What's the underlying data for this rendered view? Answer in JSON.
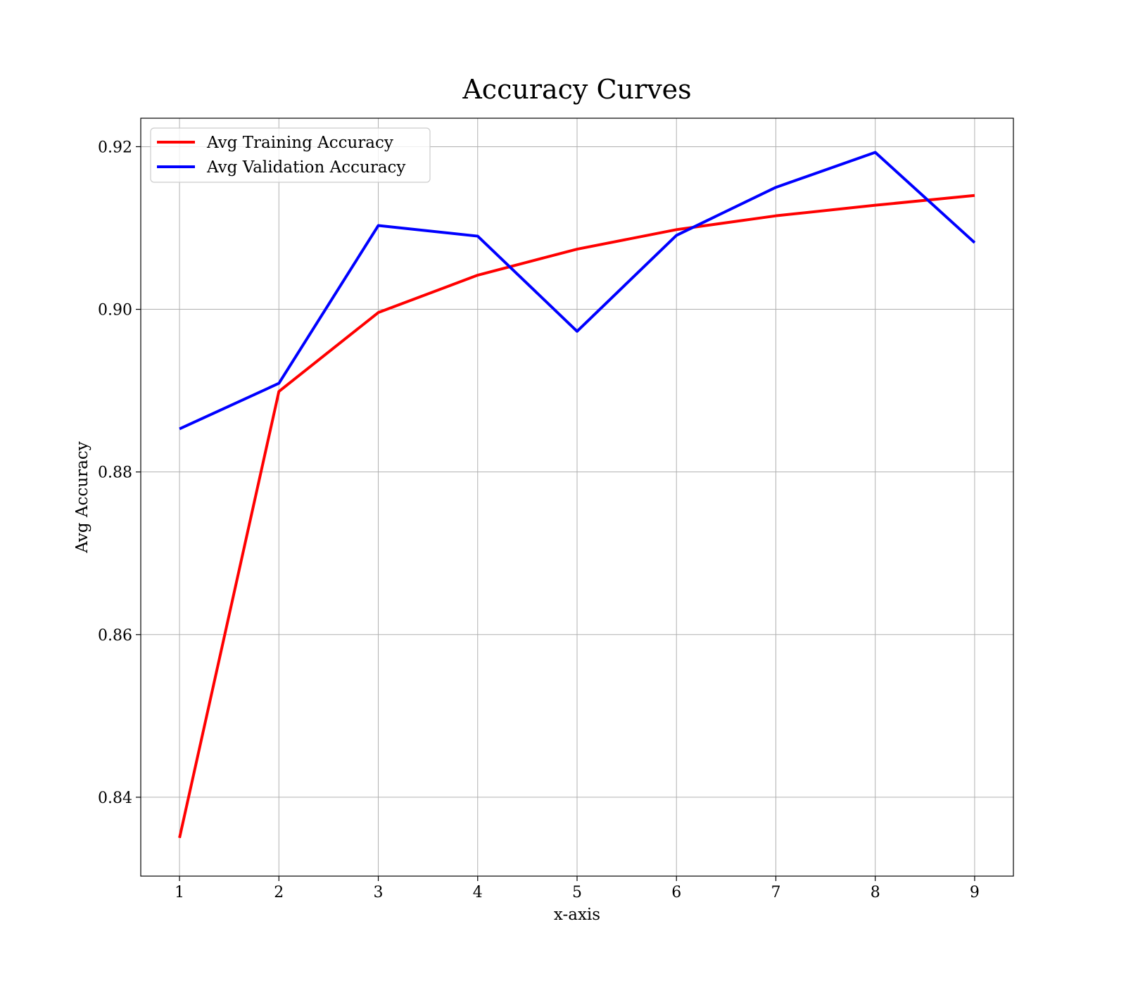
{
  "chart_data": {
    "type": "line",
    "title": "Accuracy Curves",
    "xlabel": "x-axis",
    "ylabel": "Avg Accuracy",
    "x": [
      1,
      2,
      3,
      4,
      5,
      6,
      7,
      8,
      9
    ],
    "xlim": [
      0.61,
      9.39
    ],
    "ylim": [
      0.8303,
      0.9235
    ],
    "xticks": [
      1,
      2,
      3,
      4,
      5,
      6,
      7,
      8,
      9
    ],
    "yticks": [
      0.84,
      0.86,
      0.88,
      0.9,
      0.92
    ],
    "ytick_labels": [
      "0.84",
      "0.86",
      "0.88",
      "0.90",
      "0.92"
    ],
    "grid": true,
    "legend_position": "top-left",
    "series": [
      {
        "name": "Avg Training Accuracy",
        "color": "#ff0000",
        "values": [
          0.835,
          0.8899,
          0.8996,
          0.9042,
          0.9074,
          0.9098,
          0.9115,
          0.9128,
          0.914
        ]
      },
      {
        "name": "Avg Validation Accuracy",
        "color": "#0000ff",
        "values": [
          0.8853,
          0.8909,
          0.9103,
          0.909,
          0.8973,
          0.9091,
          0.915,
          0.9193,
          0.9082
        ]
      }
    ]
  }
}
